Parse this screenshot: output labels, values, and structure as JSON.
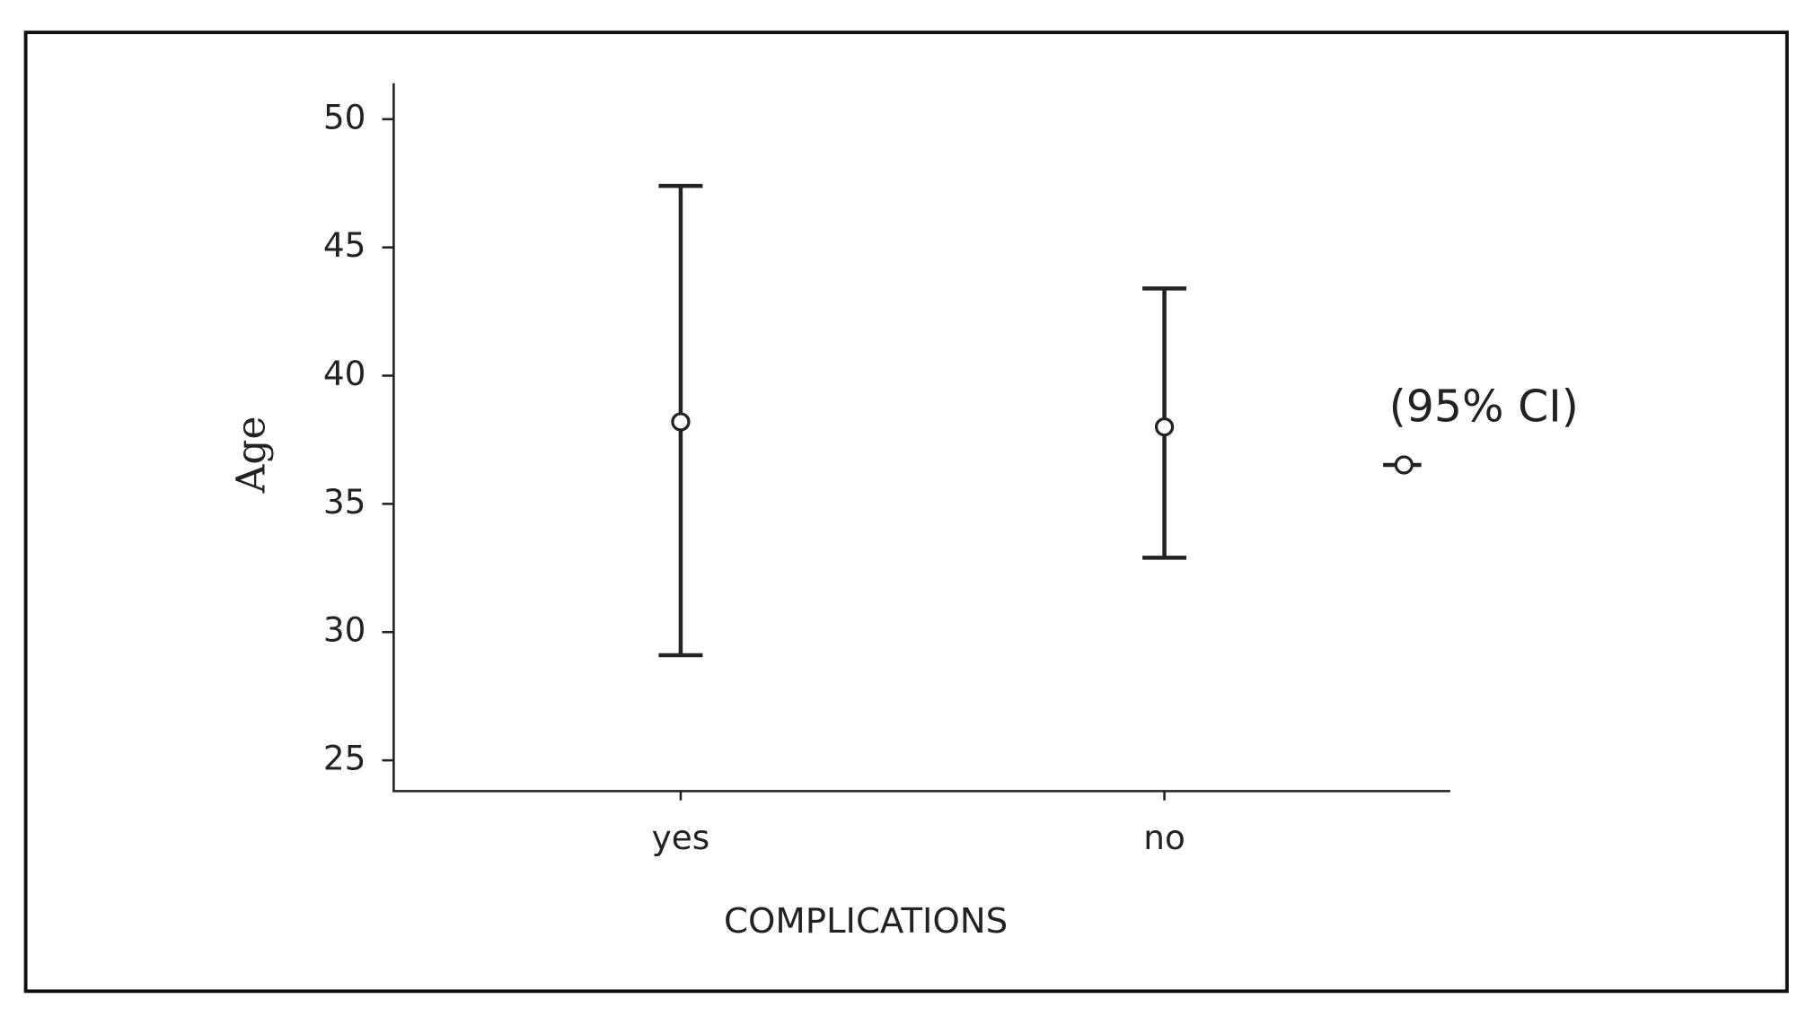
{
  "chart_data": {
    "type": "errorbar",
    "x_label": "COMPLICATIONS",
    "y_label": "Age",
    "categories": [
      "yes",
      "no"
    ],
    "series": [
      {
        "name": "(95% CI)",
        "color": "#222222",
        "values": [
          38.2,
          38.0
        ],
        "lower": [
          29.1,
          32.9
        ],
        "upper": [
          47.4,
          43.4
        ]
      }
    ],
    "ylim": [
      23.8,
      51.4
    ],
    "yticks": [
      25,
      30,
      35,
      40,
      45,
      50
    ],
    "grid": false
  }
}
